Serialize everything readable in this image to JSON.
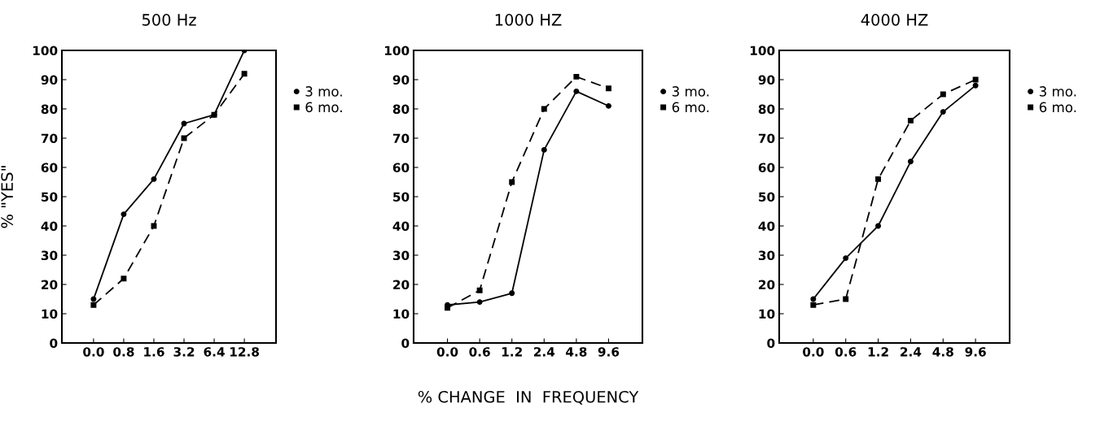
{
  "chart_data": [
    {
      "type": "line",
      "title": "500 Hz",
      "ylabel": "% \"YES\"",
      "categories": [
        "0.0",
        "0.8",
        "1.6",
        "3.2",
        "6.4",
        "12.8"
      ],
      "ylim": [
        0,
        100
      ],
      "yticks": [
        0,
        10,
        20,
        30,
        40,
        50,
        60,
        70,
        80,
        90,
        100
      ],
      "grid": false,
      "legend": "right",
      "series": [
        {
          "name": "3 mo.",
          "color": "#000000",
          "marker": "circle",
          "line_style": "solid",
          "values": [
            15,
            44,
            56,
            75,
            78,
            100
          ]
        },
        {
          "name": "6 mo.",
          "color": "#000000",
          "marker": "square",
          "line_style": "dashed",
          "values": [
            13,
            22,
            40,
            70,
            78,
            92
          ]
        }
      ]
    },
    {
      "type": "line",
      "title": "1000 HZ",
      "xlabel": "% CHANGE  IN  FREQUENCY",
      "categories": [
        "0.0",
        "0.6",
        "1.2",
        "2.4",
        "4.8",
        "9.6"
      ],
      "ylim": [
        0,
        100
      ],
      "yticks": [
        0,
        10,
        20,
        30,
        40,
        50,
        60,
        70,
        80,
        90,
        100
      ],
      "grid": false,
      "legend": "right",
      "series": [
        {
          "name": "3 mo.",
          "color": "#000000",
          "marker": "circle",
          "line_style": "solid",
          "values": [
            13,
            14,
            17,
            66,
            86,
            81
          ]
        },
        {
          "name": "6 mo.",
          "color": "#000000",
          "marker": "square",
          "line_style": "dashed",
          "values": [
            12,
            18,
            55,
            80,
            91,
            87
          ]
        }
      ]
    },
    {
      "type": "line",
      "title": "4000 HZ",
      "categories": [
        "0.0",
        "0.6",
        "1.2",
        "2.4",
        "4.8",
        "9.6"
      ],
      "ylim": [
        0,
        100
      ],
      "yticks": [
        0,
        10,
        20,
        30,
        40,
        50,
        60,
        70,
        80,
        90,
        100
      ],
      "grid": false,
      "legend": "right",
      "series": [
        {
          "name": "3 mo.",
          "color": "#000000",
          "marker": "circle",
          "line_style": "solid",
          "values": [
            15,
            29,
            40,
            62,
            79,
            88
          ]
        },
        {
          "name": "6 mo.",
          "color": "#000000",
          "marker": "square",
          "line_style": "dashed",
          "values": [
            13,
            15,
            56,
            76,
            85,
            90
          ]
        }
      ]
    }
  ]
}
